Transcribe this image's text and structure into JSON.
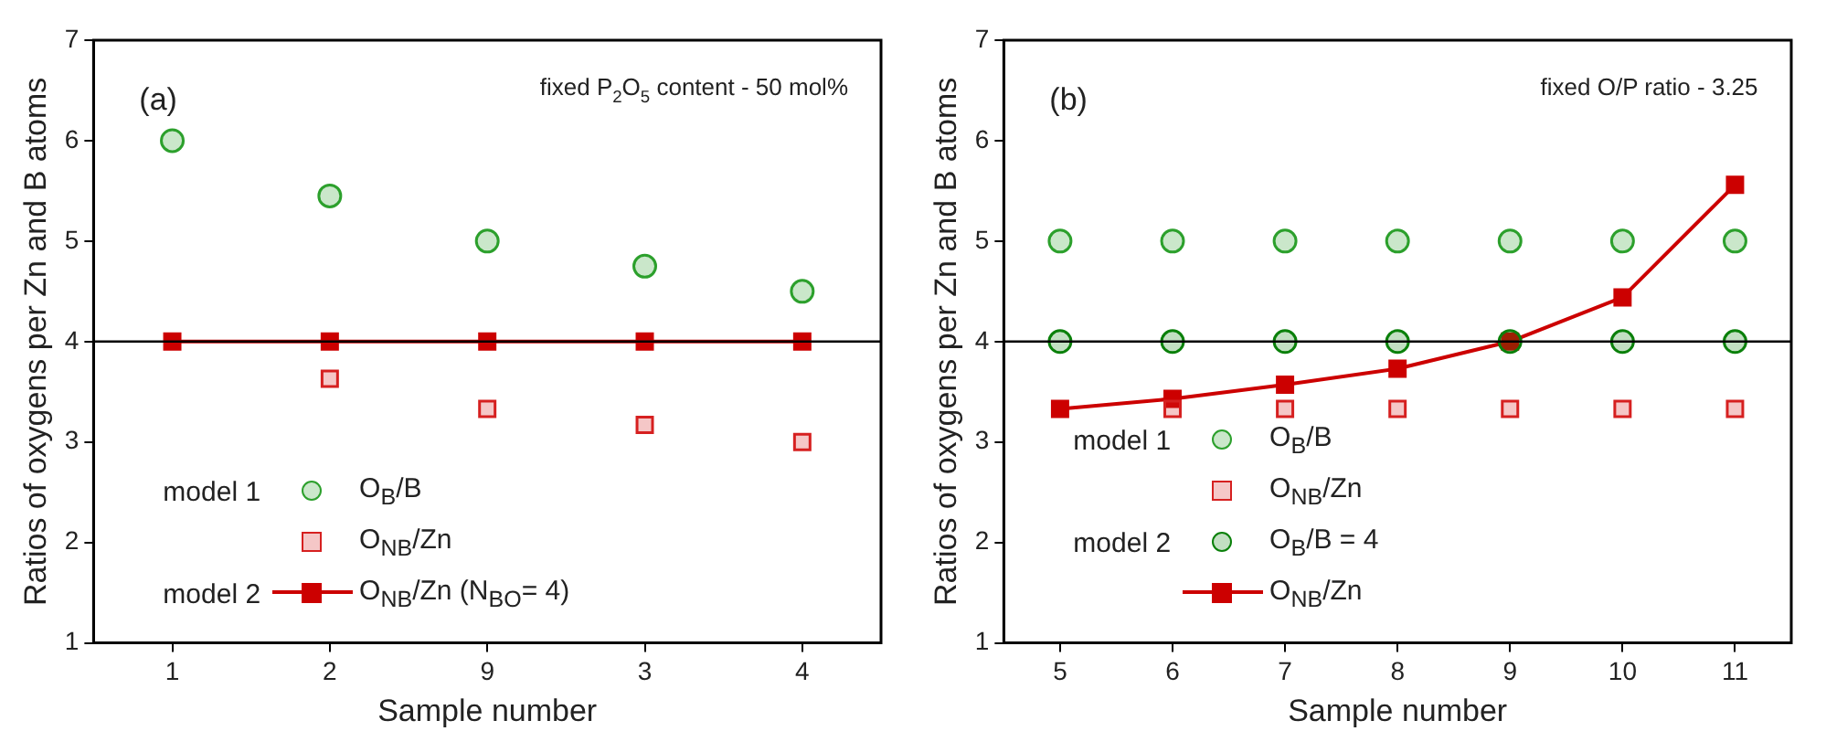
{
  "chart_data": [
    {
      "type": "scatter",
      "title": "(a)",
      "subtitle": "fixed P$_{2}$O$_{5}$ content - 50 mol%",
      "xlabel": "Sample number",
      "ylabel": "Ratios of oxygens per Zn and B atoms",
      "categories": [
        "1",
        "2",
        "9",
        "3",
        "4"
      ],
      "series": [
        {
          "name": "O$_{B}$/B",
          "color": "#2ca02c",
          "marker": "circle",
          "values": [
            6.0,
            5.45,
            5.0,
            4.75,
            4.5
          ]
        },
        {
          "name": "O$_{NB}$/Zn",
          "color": "#d62020",
          "marker": "square",
          "values": [
            null,
            3.63,
            3.33,
            3.17,
            3.0
          ]
        },
        {
          "name": "O$_{NB}$/Zn (N$_{BO}$= 4)",
          "type": "line",
          "color": "#cc0000",
          "marker": "square",
          "values": [
            4,
            4,
            4,
            4,
            4
          ]
        }
      ],
      "ylim": [
        1,
        7
      ],
      "yticks": [
        1,
        2,
        3,
        4,
        5,
        6,
        7
      ],
      "ref_lines": [
        {
          "axis": "y",
          "value": 4,
          "color": "#000000"
        }
      ],
      "annotations": [
        "model 1",
        "model 2"
      ],
      "legend": "bottom left",
      "grid": false
    },
    {
      "type": "scatter",
      "title": "(b)",
      "subtitle": "fixed O/P ratio - 3.25",
      "xlabel": "Sample number",
      "ylabel": "Ratios of oxygens per Zn and B atoms",
      "x": [
        5,
        6,
        7,
        8,
        9,
        10,
        11
      ],
      "series": [
        {
          "name": "O$_{B}$/B",
          "color": "#2ca02c",
          "marker": "circle",
          "values": [
            5,
            5,
            5,
            5,
            5,
            5,
            5
          ]
        },
        {
          "name": "O$_{NB}$/Zn",
          "color": "#d62020",
          "marker": "square",
          "values": [
            null,
            3.33,
            3.33,
            3.33,
            3.33,
            3.33,
            3.33
          ]
        },
        {
          "name": "O$_{B}$/B = 4",
          "color": "#0a800a",
          "marker": "circle",
          "values": [
            4,
            4,
            4,
            4,
            4,
            4,
            4
          ]
        },
        {
          "name": "O$_{NB}$/Zn",
          "type": "line",
          "color": "#cc0000",
          "marker": "square",
          "values": [
            3.33,
            3.43,
            3.57,
            3.73,
            4.0,
            4.44,
            5.56
          ]
        }
      ],
      "xlim": [
        4.5,
        11.5
      ],
      "xticks": [
        5,
        6,
        7,
        8,
        9,
        10,
        11
      ],
      "ylim": [
        1,
        7
      ],
      "yticks": [
        1,
        2,
        3,
        4,
        5,
        6,
        7
      ],
      "ref_lines": [
        {
          "axis": "y",
          "value": 4,
          "color": "#000000"
        }
      ],
      "annotations": [
        "model 1",
        "model 2"
      ],
      "legend": "bottom left",
      "grid": false
    }
  ]
}
